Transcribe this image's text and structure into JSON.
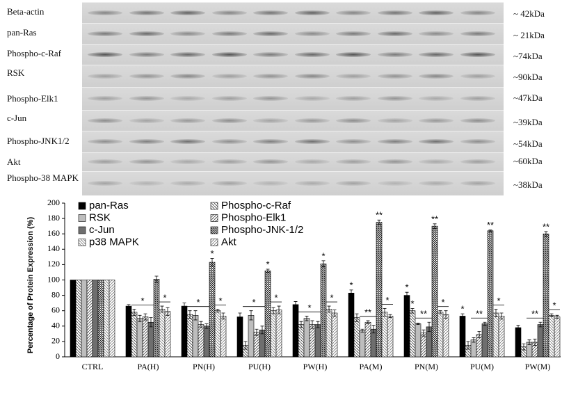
{
  "blot": {
    "rows": [
      {
        "label": "Beta-actin",
        "size": "~ 42kDa"
      },
      {
        "label": "pan-Ras",
        "size": "~ 21kDa"
      },
      {
        "label": "Phospho-c-Raf",
        "size": "~74kDa"
      },
      {
        "label": "RSK",
        "size": "~90kDa"
      },
      {
        "label": "Phospho-Elk1",
        "size": "~47kDa"
      },
      {
        "label": "c-Jun",
        "size": "~39kDa"
      },
      {
        "label": "Phospho-JNK1/2",
        "size": "~54kDa"
      },
      {
        "label": "Akt",
        "size": "~60kDa"
      },
      {
        "label": "Phospho-38 MAPK",
        "size": "~38kDa"
      }
    ]
  },
  "chart_data": {
    "type": "bar",
    "y_label": "Percentage of Protein Expression (%)",
    "categories": [
      "CTRL",
      "PA(H)",
      "PN(H)",
      "PU(H)",
      "PW(H)",
      "PA(M)",
      "PN(M)",
      "PU(M)",
      "PW(M)"
    ],
    "series": [
      {
        "name": "pan-Ras",
        "color": "#000000",
        "pattern": "solid",
        "values": [
          100,
          66,
          66,
          52,
          68,
          83,
          80,
          53,
          38
        ],
        "errors": [
          0,
          2,
          4,
          5,
          4,
          4,
          4,
          3,
          3
        ],
        "significance": [
          null,
          null,
          null,
          null,
          null,
          "*",
          "*",
          "*",
          null
        ]
      },
      {
        "name": "Phospho-c-Raf",
        "color": "#555555",
        "pattern": "back",
        "values": [
          100,
          58,
          55,
          15,
          42,
          51,
          60,
          15,
          13
        ],
        "errors": [
          0,
          4,
          5,
          5,
          4,
          5,
          3,
          5,
          4
        ],
        "significance": [
          null,
          null,
          null,
          null,
          null,
          null,
          "*",
          null,
          null
        ]
      },
      {
        "name": "RSK",
        "color": "#bdbdbd",
        "pattern": "solid",
        "values": [
          100,
          50,
          54,
          54,
          50,
          34,
          43,
          22,
          19
        ],
        "errors": [
          0,
          4,
          6,
          6,
          3,
          2,
          1,
          3,
          3
        ],
        "significance": [
          null,
          null,
          null,
          null,
          null,
          null,
          null,
          null,
          null
        ]
      },
      {
        "name": "Phospho-Elk1",
        "color": "#555555",
        "pattern": "forward",
        "values": [
          100,
          52,
          42,
          32,
          42,
          45,
          31,
          29,
          19
        ],
        "errors": [
          0,
          4,
          4,
          4,
          5,
          2,
          4,
          4,
          4
        ],
        "significance": [
          null,
          null,
          null,
          null,
          null,
          null,
          null,
          null,
          null
        ]
      },
      {
        "name": "c-Jun",
        "color": "#6e6e6e",
        "pattern": "solid",
        "values": [
          100,
          45,
          40,
          35,
          42,
          36,
          39,
          43,
          42
        ],
        "errors": [
          0,
          6,
          3,
          5,
          4,
          5,
          6,
          2,
          3
        ],
        "significance": [
          null,
          null,
          null,
          null,
          null,
          null,
          null,
          null,
          null
        ]
      },
      {
        "name": "Phospho-JNK-1/2",
        "color": "#222222",
        "pattern": "dense",
        "values": [
          100,
          101,
          123,
          112,
          121,
          175,
          170,
          164,
          160
        ],
        "errors": [
          0,
          4,
          5,
          2,
          4,
          3,
          3,
          1,
          3
        ],
        "significance": [
          null,
          null,
          "*",
          "*",
          "*",
          "**",
          "**",
          "**",
          "**"
        ]
      },
      {
        "name": "p38 MAPK",
        "color": "#888888",
        "pattern": "back",
        "values": [
          100,
          62,
          60,
          60,
          62,
          58,
          58,
          57,
          54
        ],
        "errors": [
          0,
          4,
          2,
          4,
          4,
          5,
          2,
          5,
          2
        ],
        "significance": [
          null,
          null,
          null,
          null,
          null,
          null,
          null,
          null,
          null
        ]
      },
      {
        "name": "Akt",
        "color": "#888888",
        "pattern": "forward",
        "values": [
          100,
          59,
          53,
          61,
          57,
          53,
          55,
          53,
          52
        ],
        "errors": [
          0,
          5,
          4,
          5,
          4,
          2,
          5,
          4,
          2
        ],
        "significance": [
          null,
          null,
          null,
          null,
          null,
          null,
          null,
          null,
          null
        ]
      }
    ],
    "brackets": [
      {
        "label": "*",
        "category": 1,
        "from": 1,
        "to": 4
      },
      {
        "label": "*",
        "category": 1,
        "from": 6,
        "to": 7
      },
      {
        "label": "*",
        "category": 2,
        "from": 1,
        "to": 4
      },
      {
        "label": "*",
        "category": 2,
        "from": 6,
        "to": 7
      },
      {
        "label": "*",
        "category": 3,
        "from": 1,
        "to": 4
      },
      {
        "label": "*",
        "category": 3,
        "from": 6,
        "to": 7
      },
      {
        "label": "*",
        "category": 4,
        "from": 1,
        "to": 4
      },
      {
        "label": "*",
        "category": 4,
        "from": 6,
        "to": 7
      },
      {
        "label": "**",
        "category": 5,
        "from": 2,
        "to": 4
      },
      {
        "label": "*",
        "category": 5,
        "from": 6,
        "to": 7
      },
      {
        "label": "**",
        "category": 6,
        "from": 2,
        "to": 4
      },
      {
        "label": "*",
        "category": 6,
        "from": 6,
        "to": 7
      },
      {
        "label": "**",
        "category": 7,
        "from": 2,
        "to": 4
      },
      {
        "label": "*",
        "category": 7,
        "from": 6,
        "to": 7
      },
      {
        "label": "**",
        "category": 8,
        "from": 2,
        "to": 4
      },
      {
        "label": "*",
        "category": 8,
        "from": 6,
        "to": 7
      }
    ],
    "ylim": [
      0,
      200
    ],
    "yticks": [
      0,
      20,
      40,
      60,
      80,
      100,
      120,
      140,
      160,
      180,
      200
    ],
    "grid": false,
    "legend": "top-left"
  }
}
